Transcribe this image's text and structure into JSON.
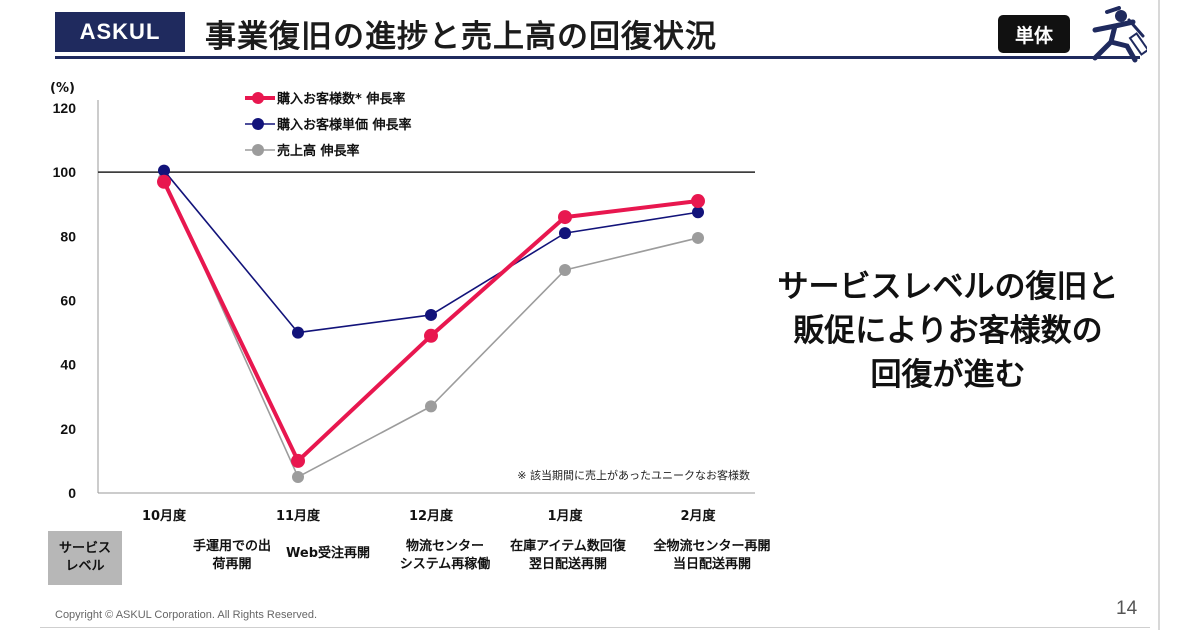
{
  "header": {
    "brand": "ASKUL",
    "title": "事業復旧の進捗と売上高の回復状況",
    "badge": "単体",
    "mascot_icon": "running-mascot-icon"
  },
  "chart_data": {
    "type": "line",
    "ylabel": "(%)",
    "ylim": [
      0,
      120
    ],
    "yticks": [
      "0",
      "20",
      "40",
      "60",
      "80",
      "100",
      "120"
    ],
    "reference_line": 100,
    "categories": [
      "10月度",
      "11月度",
      "12月度",
      "1月度",
      "2月度"
    ],
    "series": [
      {
        "name": "購入お客様数* 伸長率",
        "color": "#e8174f",
        "values": [
          97,
          10,
          49,
          86,
          91
        ]
      },
      {
        "name": "購入お客様単価 伸長率",
        "color": "#12137a",
        "values": [
          100.5,
          50,
          55.5,
          81,
          87.5
        ]
      },
      {
        "name": "売上高 伸長率",
        "color": "#9c9c9c",
        "values": [
          98,
          5,
          27,
          69.5,
          79.5
        ]
      }
    ],
    "note": "※ 該当期間に売上があったユニークなお客様数"
  },
  "callout": {
    "lines": [
      "サービスレベルの復旧と",
      "販促によりお客様数の",
      "回復が進む"
    ]
  },
  "service_level": {
    "label_line1": "サービス",
    "label_line2": "レベル",
    "items": [
      {
        "line1": "手運用での出",
        "line2": "荷再開"
      },
      {
        "line1": "Web受注再開",
        "line2": ""
      },
      {
        "line1": "物流センター",
        "line2": "システム再稼働"
      },
      {
        "line1": "在庫アイテム数回復",
        "line2": "翌日配送再開"
      },
      {
        "line1": "全物流センター再開",
        "line2": "当日配送再開"
      }
    ]
  },
  "footer": {
    "copyright": "Copyright © ASKUL Corporation. All Rights Reserved.",
    "page_number": "14"
  },
  "colors": {
    "brand_navy": "#1f2a5e",
    "badge_bg": "#111111",
    "service_box": "#b7b7b7"
  }
}
